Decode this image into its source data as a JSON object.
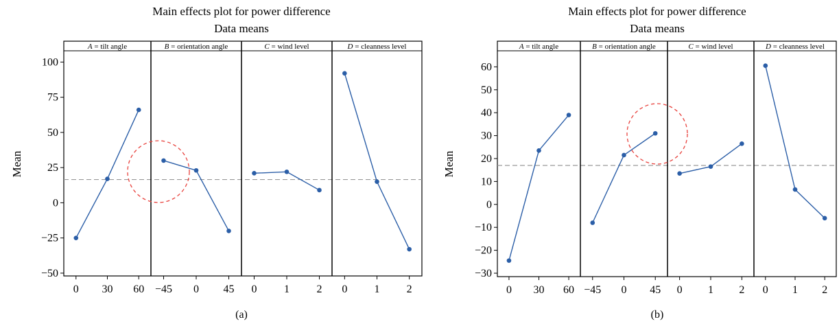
{
  "chart_data": [
    {
      "type": "line",
      "title": "Main effects plot for power difference",
      "subtitle": "Data means",
      "ylabel": "Mean",
      "ylim": [
        -52,
        108
      ],
      "yticks": [
        -50,
        -25,
        0,
        25,
        50,
        75,
        100
      ],
      "reference_line": 16.5,
      "sublabel": "(a)",
      "highlight": "B = orientation angle",
      "panels": [
        {
          "header_var": "A",
          "header_text": " = tilt angle",
          "categories": [
            "0",
            "30",
            "60"
          ],
          "values": [
            -25,
            17,
            66
          ]
        },
        {
          "header_var": "B",
          "header_text": " = orientation angle",
          "categories": [
            "−45",
            "0",
            "45"
          ],
          "values": [
            30,
            23,
            -20
          ]
        },
        {
          "header_var": "C",
          "header_text": " = wind level",
          "categories": [
            "0",
            "1",
            "2"
          ],
          "values": [
            21,
            22,
            9
          ]
        },
        {
          "header_var": "D",
          "header_text": " = cleanness level",
          "categories": [
            "0",
            "1",
            "2"
          ],
          "values": [
            92,
            15,
            -33
          ]
        }
      ]
    },
    {
      "type": "line",
      "title": "Main effects plot for power difference",
      "subtitle": "Data means",
      "ylabel": "Mean",
      "ylim": [
        -31.5,
        67
      ],
      "yticks": [
        -30,
        -20,
        -10,
        0,
        10,
        20,
        30,
        40,
        50,
        60
      ],
      "reference_line": 17,
      "sublabel": "(b)",
      "highlight": "B = orientation angle",
      "panels": [
        {
          "header_var": "A",
          "header_text": " = tilt angle",
          "categories": [
            "0",
            "30",
            "60"
          ],
          "values": [
            -24.5,
            23.5,
            39
          ]
        },
        {
          "header_var": "B",
          "header_text": " = orientation angle",
          "categories": [
            "−45",
            "0",
            "45"
          ],
          "values": [
            -8,
            21.5,
            31
          ]
        },
        {
          "header_var": "C",
          "header_text": " = wind level",
          "categories": [
            "0",
            "1",
            "2"
          ],
          "values": [
            13.5,
            16.5,
            26.5
          ]
        },
        {
          "header_var": "D",
          "header_text": " = cleanness level",
          "categories": [
            "0",
            "1",
            "2"
          ],
          "values": [
            60.5,
            6.5,
            -6
          ]
        }
      ]
    }
  ],
  "colors": {
    "series": "#2b5ea7",
    "reference_line": "#999999",
    "highlight_circle": "#e8413c",
    "axis": "#000000"
  }
}
